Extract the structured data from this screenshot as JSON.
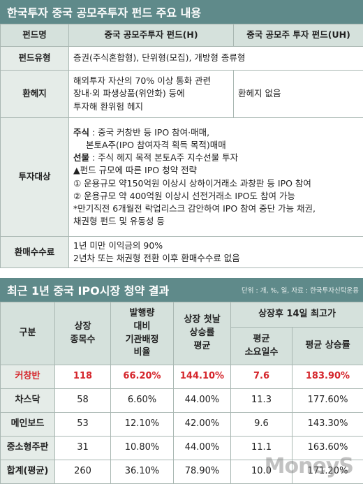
{
  "section1": {
    "title": "한국투자 중국 공모주투자 펀드 주요 내용",
    "table": {
      "header": [
        "펀드명",
        "중국 공모주투자 펀드(H)",
        "중국 공모주 투자 펀드(UH)"
      ],
      "fund_type": {
        "label": "펀드유형",
        "value": "증권(주식혼합형), 단위형(모집), 개방형 종류형"
      },
      "hedge": {
        "label": "환헤지",
        "h": "해외투자 자산의 70% 이상 통화 관련\n장내·외 파생상품(위안화) 등에\n투자해 환위험 헤지",
        "uh": "환헤지 없음"
      },
      "target": {
        "label": "투자대상",
        "lines": [
          {
            "label": "주식",
            "text": ": 중국 커창반 등 IPO 참여·매매,"
          },
          {
            "text": "본토A주(IPO 참여자격 획득 목적)매매"
          },
          {
            "label": "선물",
            "text": ": 주식 헤지 목적 본토A주 지수선물 투자"
          },
          {
            "text": "▲펀드 규모에 따른 IPO 청약 전략"
          },
          {
            "text": "① 운용규모 약150억원 이상시 상하이거래소 과창판 등 IPO 참여"
          },
          {
            "text": "② 운용규모 약 400억원 이상시 선전거래소 IPO도 참여 가능"
          },
          {
            "text": "*만기직전 6개월전 락업리스크 감안하여 IPO 참여 중단 가능 채권,"
          },
          {
            "text": "채권형 펀드 및 유동성 등"
          }
        ]
      },
      "fee": {
        "label": "환매수수료",
        "value": "1년 미만 이익금의 90%\n2년차 또는 채권형 전환 이후 환매수수료 없음"
      }
    }
  },
  "section2": {
    "title": "최근 1년 중국 IPO시장 청약 결과",
    "note": "단위 : 개, %, 일, 자료 : 한국투자신탁운용",
    "header": {
      "category": "구분",
      "count": "상장\n종목수",
      "ratio": "발행량\n대비\n기관배정\n비율",
      "first_day": "상장 첫날\n상승률\n평균",
      "group": "상장후 14일 최고가",
      "days": "평균\n소요일수",
      "rise": "평균 상승률"
    },
    "rows": [
      [
        "커창반",
        "118",
        "66.20%",
        "144.10%",
        "7.6",
        "183.90%"
      ],
      [
        "차스닥",
        "58",
        "6.60%",
        "44.00%",
        "11.3",
        "177.60%"
      ],
      [
        "메인보드",
        "53",
        "12.10%",
        "42.00%",
        "9.6",
        "143.30%"
      ],
      [
        "중소형주판",
        "31",
        "10.80%",
        "44.00%",
        "11.1",
        "163.60%"
      ],
      [
        "합계(평균)",
        "260",
        "36.10%",
        "78.90%",
        "10.0",
        "171.20%"
      ]
    ]
  },
  "watermark": "MoneyS"
}
